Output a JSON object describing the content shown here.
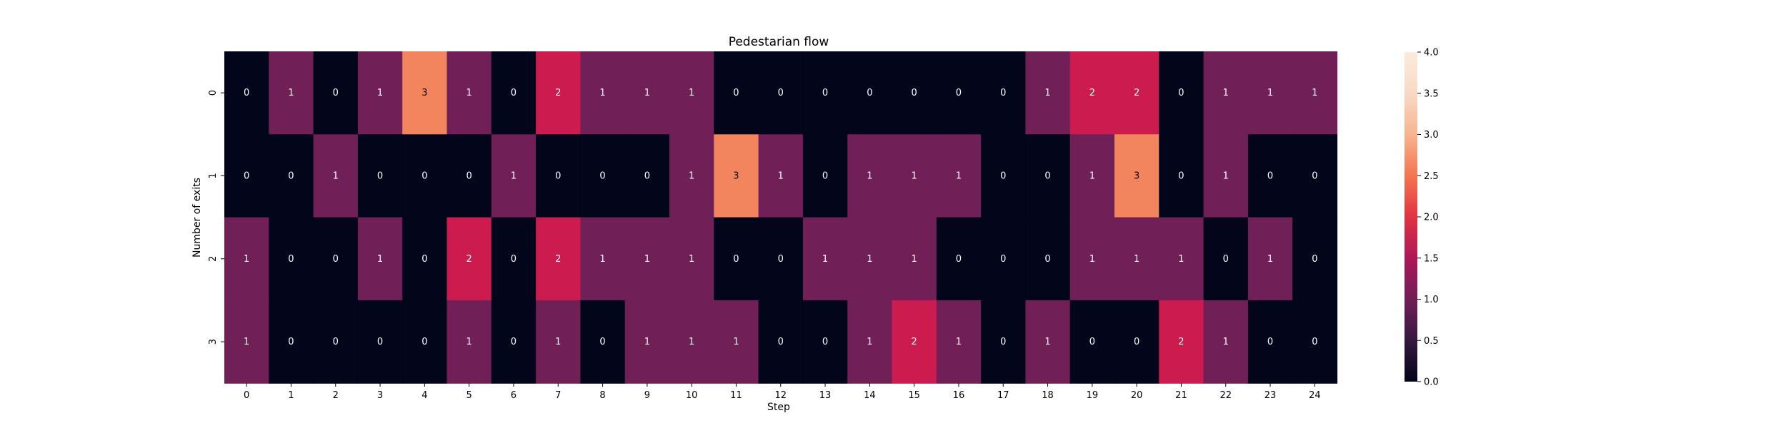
{
  "chart_data": {
    "type": "heatmap",
    "title": "Pedestarian flow",
    "xlabel": "Step",
    "ylabel": "Number of exits",
    "x_categories": [
      "0",
      "1",
      "2",
      "3",
      "4",
      "5",
      "6",
      "7",
      "8",
      "9",
      "10",
      "11",
      "12",
      "13",
      "14",
      "15",
      "16",
      "17",
      "18",
      "19",
      "20",
      "21",
      "22",
      "23",
      "24"
    ],
    "y_categories": [
      "0",
      "1",
      "2",
      "3"
    ],
    "values": [
      [
        0,
        1,
        0,
        1,
        3,
        1,
        0,
        2,
        1,
        1,
        1,
        0,
        0,
        0,
        0,
        0,
        0,
        0,
        1,
        2,
        2,
        0,
        1,
        1,
        1
      ],
      [
        0,
        0,
        1,
        0,
        0,
        0,
        1,
        0,
        0,
        0,
        1,
        3,
        1,
        0,
        1,
        1,
        1,
        0,
        0,
        1,
        3,
        0,
        1,
        0,
        0
      ],
      [
        1,
        0,
        0,
        1,
        0,
        2,
        0,
        2,
        1,
        1,
        1,
        0,
        0,
        1,
        1,
        1,
        0,
        0,
        0,
        1,
        1,
        1,
        0,
        1,
        0
      ],
      [
        1,
        0,
        0,
        0,
        0,
        1,
        0,
        1,
        0,
        1,
        1,
        1,
        0,
        0,
        1,
        2,
        1,
        0,
        1,
        0,
        0,
        2,
        1,
        0,
        0
      ]
    ],
    "annotations": true,
    "colormap": "rocket",
    "vmin": 0,
    "vmax": 4,
    "colorbar_ticks": [
      "0.0",
      "0.5",
      "1.0",
      "1.5",
      "2.0",
      "2.5",
      "3.0",
      "3.5",
      "4.0"
    ],
    "colors": {
      "0": "#03051a",
      "1": "#701f57",
      "2": "#cb1b4f",
      "3": "#f2855d",
      "4": "#faebdd"
    }
  }
}
